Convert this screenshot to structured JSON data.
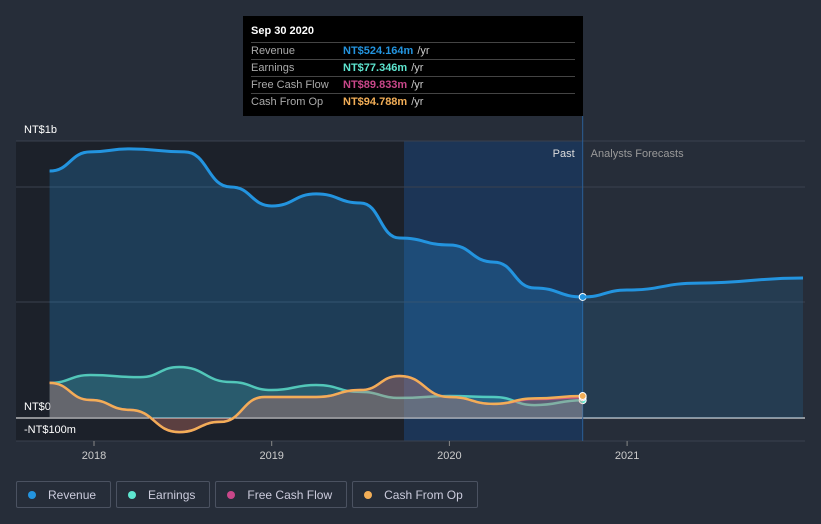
{
  "tooltip": {
    "date": "Sep 30 2020",
    "rows": [
      {
        "label": "Revenue",
        "value": "NT$524.164m",
        "unit": "/yr",
        "color": "#2394df"
      },
      {
        "label": "Earnings",
        "value": "NT$77.346m",
        "unit": "/yr",
        "color": "#5ee6d0"
      },
      {
        "label": "Free Cash Flow",
        "value": "NT$89.833m",
        "unit": "/yr",
        "color": "#c9478a"
      },
      {
        "label": "Cash From Op",
        "value": "NT$94.788m",
        "unit": "/yr",
        "color": "#f2ae57"
      }
    ]
  },
  "chart_data": {
    "type": "line",
    "ylabel": "",
    "xlabel": "",
    "ylim": [
      -100,
      1200
    ],
    "ytick_labels": [
      "NT$1b",
      "NT$0",
      "-NT$100m"
    ],
    "xticks": [
      2018,
      2019,
      2020,
      2021
    ],
    "past_label": "Past",
    "forecast_label": "Analysts Forecasts",
    "divider_year": 2020.75,
    "series": [
      {
        "name": "Revenue",
        "color": "#2394df",
        "x": [
          2017.75,
          2017.98,
          2018.2,
          2018.51,
          2018.77,
          2019.0,
          2019.25,
          2019.5,
          2019.72,
          2020.0,
          2020.25,
          2020.48,
          2020.75
        ],
        "values": [
          1069,
          1152,
          1165,
          1152,
          1000,
          918,
          970,
          931,
          779,
          749,
          675,
          563,
          524
        ]
      },
      {
        "name": "Revenue Forecast",
        "color": "#2394df",
        "x": [
          2020.75,
          2021.0,
          2021.4,
          2021.99
        ],
        "values": [
          524,
          554,
          584,
          606
        ]
      },
      {
        "name": "Earnings",
        "color": "#5ee6d0",
        "x": [
          2017.75,
          2017.98,
          2018.26,
          2018.48,
          2018.77,
          2019.0,
          2019.25,
          2019.5,
          2019.72,
          2020.0,
          2020.25,
          2020.48,
          2020.75
        ],
        "values": [
          152,
          186,
          177,
          221,
          156,
          121,
          143,
          113,
          87,
          95,
          91,
          56,
          77
        ]
      },
      {
        "name": "Free Cash Flow",
        "color": "#c9478a",
        "x": [
          2017.75,
          2017.98,
          2018.2,
          2018.48,
          2018.71,
          2018.96,
          2019.25,
          2019.5,
          2019.72,
          2020.0,
          2020.25,
          2020.48,
          2020.75
        ],
        "values": [
          152,
          78,
          35,
          -61,
          -17,
          91,
          91,
          121,
          182,
          91,
          61,
          82,
          90
        ]
      },
      {
        "name": "Cash From Op",
        "color": "#f2ae57",
        "x": [
          2017.75,
          2017.98,
          2018.2,
          2018.48,
          2018.71,
          2018.96,
          2019.25,
          2019.5,
          2019.72,
          2020.0,
          2020.25,
          2020.48,
          2020.75
        ],
        "values": [
          152,
          78,
          35,
          -61,
          -17,
          91,
          91,
          121,
          182,
          91,
          61,
          85,
          95
        ]
      }
    ]
  },
  "legend": [
    "Revenue",
    "Earnings",
    "Free Cash Flow",
    "Cash From Op"
  ]
}
